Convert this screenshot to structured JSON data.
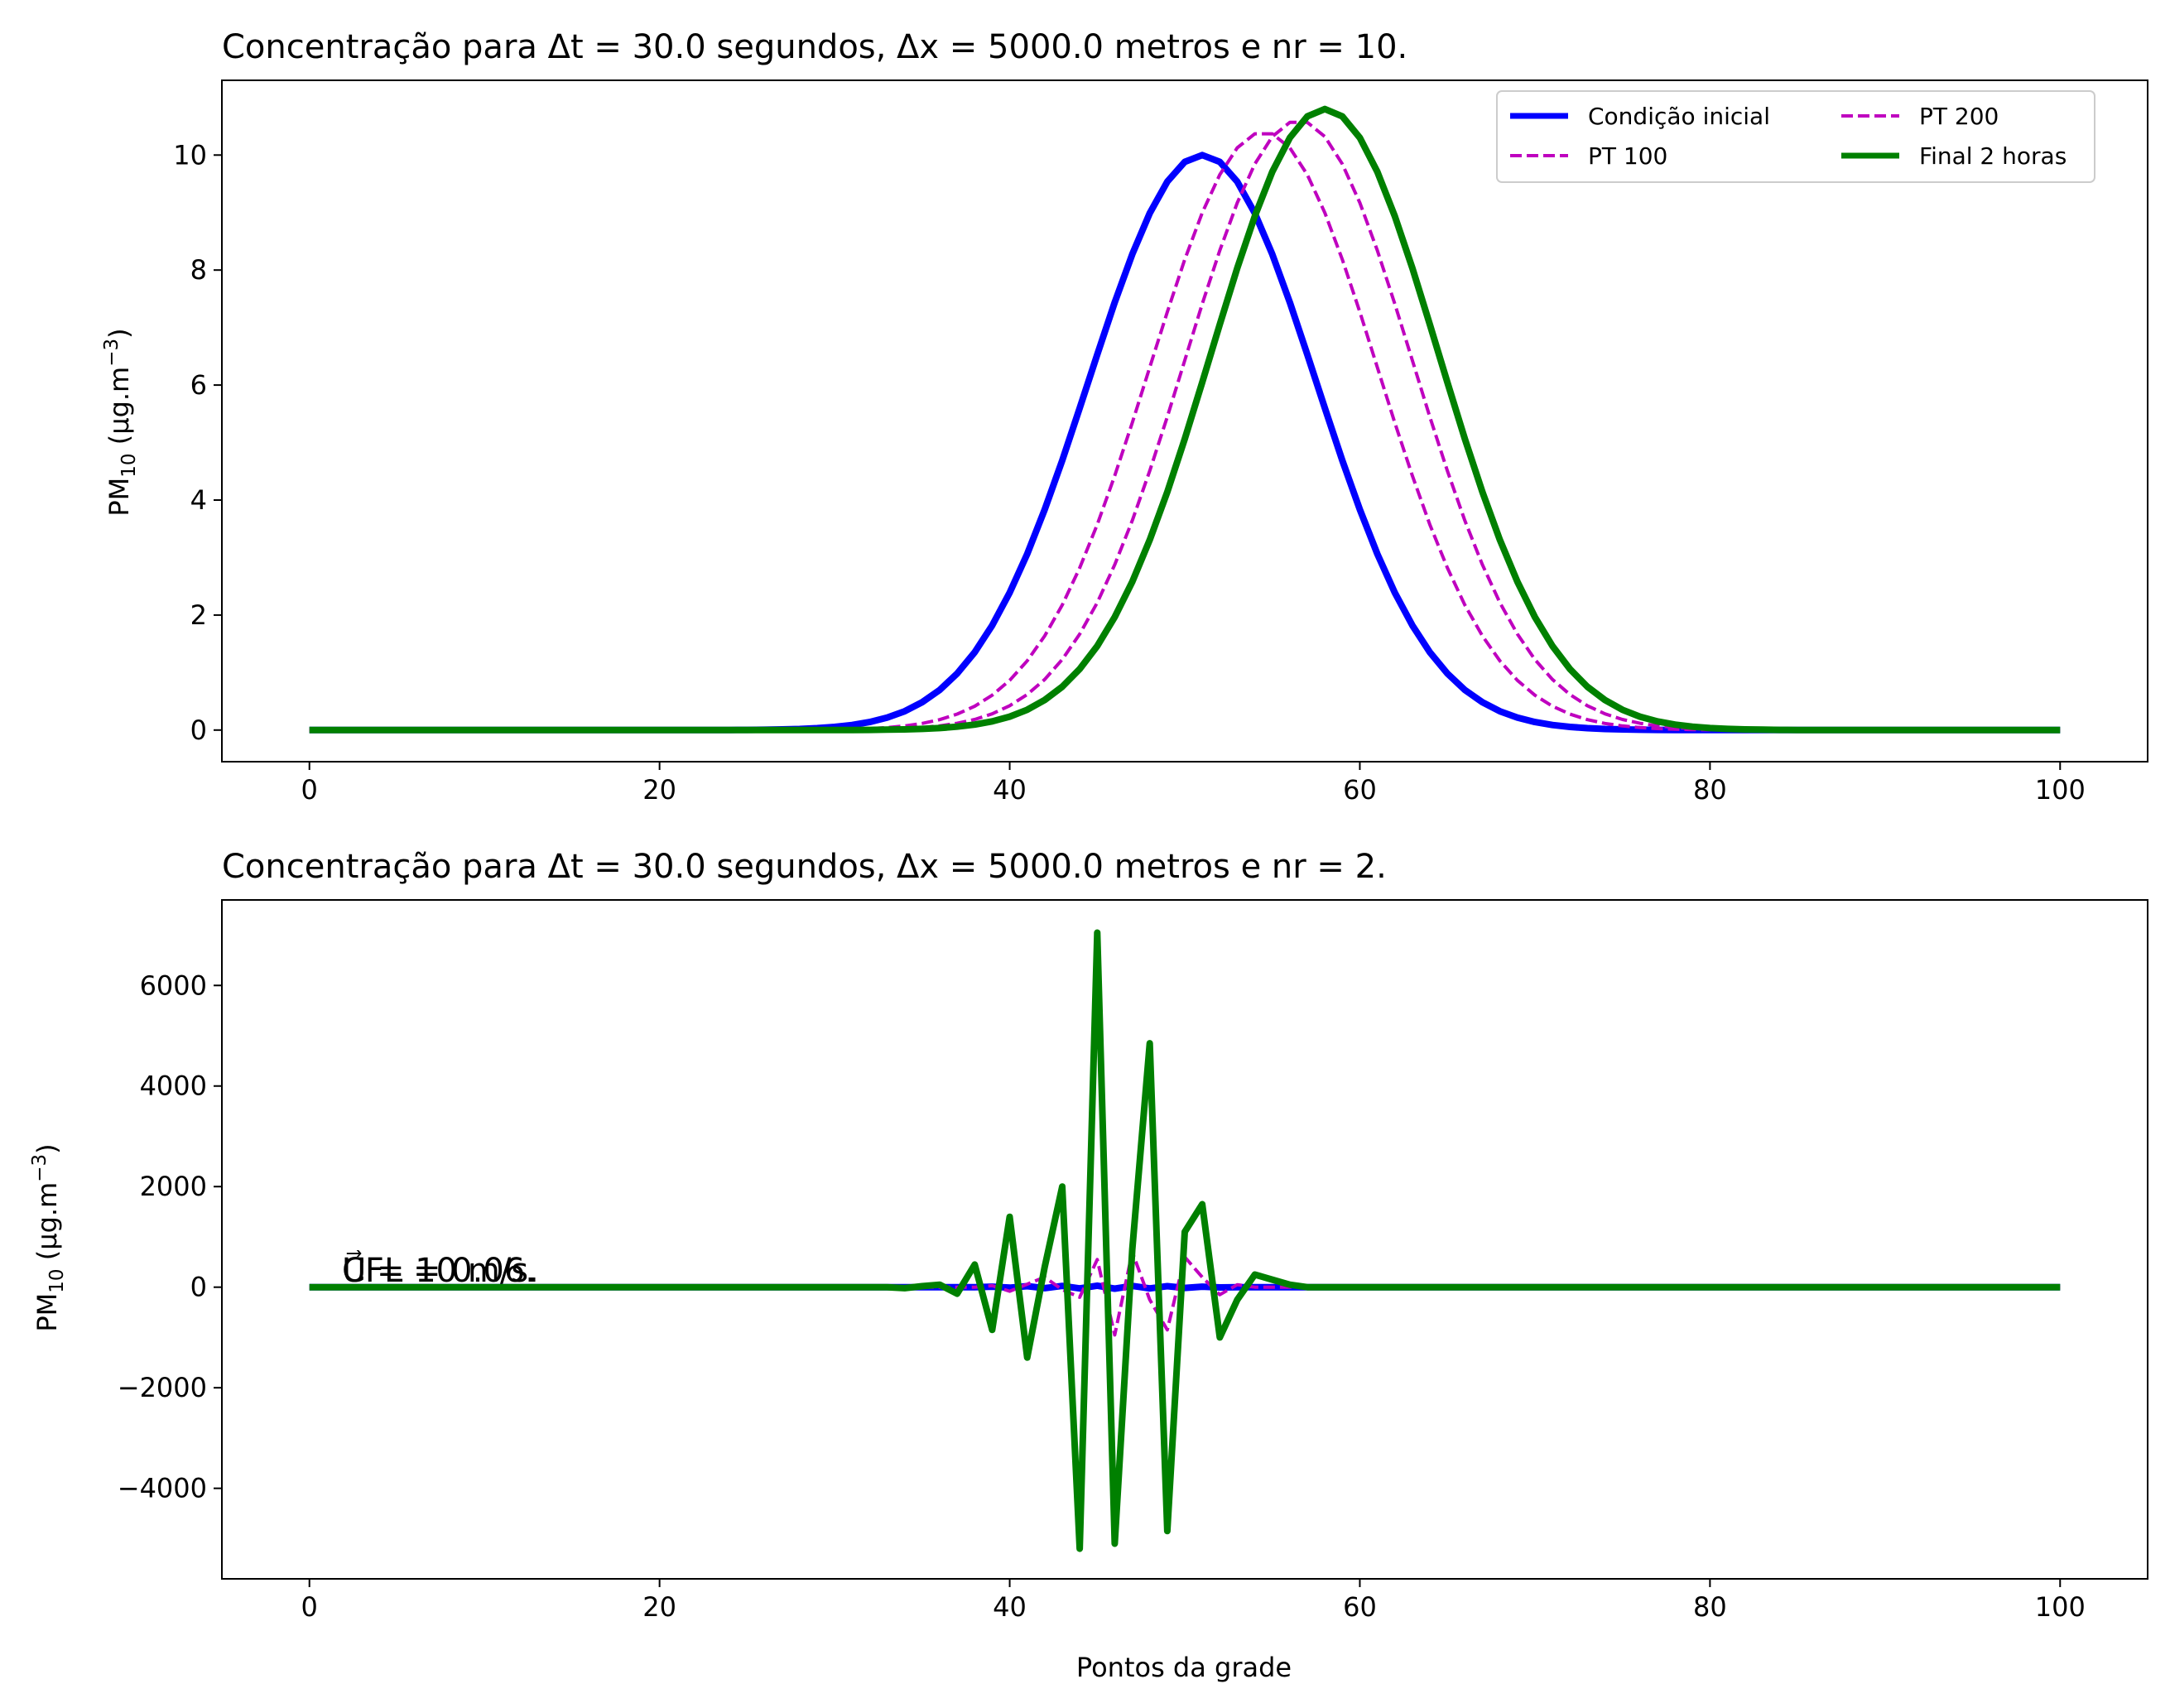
{
  "chart_data": [
    {
      "type": "line",
      "title": "Concentração para Δt = 30.0 segundos, Δx = 5000.0 metros e nr = 10.",
      "xlabel": "",
      "ylabel": "PM",
      "ylabel_sub": "10",
      "ylabel_units": "(μg.m",
      "ylabel_sup": "−3",
      "ylabel_close": ")",
      "xlim": [
        -5,
        105
      ],
      "ylim": [
        -0.55,
        11.3
      ],
      "xticks": [
        0,
        20,
        40,
        60,
        80,
        100
      ],
      "yticks": [
        0,
        2,
        4,
        6,
        8,
        10
      ],
      "grid": false,
      "legend_position": "top-right",
      "legend_columns": 2,
      "series": [
        {
          "name": "Condição inicial",
          "style": "solid",
          "color": "#0000ff",
          "gaussian": {
            "amplitude": 10.0,
            "center": 51,
            "sigma": 6.5
          }
        },
        {
          "name": "PT 100",
          "style": "dashed",
          "color": "#bf00bf",
          "gaussian": {
            "amplitude": 10.4,
            "center": 54.5,
            "sigma": 6.5
          }
        },
        {
          "name": "PT 200",
          "style": "dashed",
          "color": "#bf00bf",
          "gaussian": {
            "amplitude": 10.6,
            "center": 56.5,
            "sigma": 6.5
          }
        },
        {
          "name": "Final 2 horas",
          "style": "solid",
          "color": "#008000",
          "gaussian": {
            "amplitude": 10.8,
            "center": 58,
            "sigma": 6.5
          }
        }
      ]
    },
    {
      "type": "line",
      "title": "Concentração para Δt = 30.0 segundos, Δx = 5000.0 metros e nr = 2.",
      "xlabel": "Pontos da grade",
      "ylabel": "PM",
      "ylabel_sub": "10",
      "ylabel_units": "(μg.m",
      "ylabel_sup": "−3",
      "ylabel_close": ")",
      "xlim": [
        -5,
        105
      ],
      "ylim": [
        -5800,
        7700
      ],
      "xticks": [
        0,
        20,
        40,
        60,
        80,
        100
      ],
      "yticks": [
        -4000,
        -2000,
        0,
        2000,
        4000,
        6000
      ],
      "grid": false,
      "annotations": [
        "U⃗ = 10 m/s.",
        "CFL = 0.06."
      ],
      "series": [
        {
          "name": "",
          "style": "solid",
          "color": "#0000ff",
          "x": [
            0,
            38,
            39,
            40,
            41,
            42,
            43,
            44,
            45,
            46,
            47,
            48,
            49,
            50,
            51,
            52,
            53,
            100
          ],
          "y": [
            0,
            0,
            10,
            -10,
            20,
            -20,
            25,
            -25,
            30,
            -30,
            25,
            -25,
            20,
            -15,
            10,
            -5,
            0,
            0
          ]
        },
        {
          "name": "",
          "style": "dashed",
          "color": "#bf00bf",
          "x": [
            0,
            38,
            39,
            40,
            41,
            42,
            43,
            44,
            45,
            46,
            47,
            48,
            49,
            50,
            51,
            52,
            53,
            54,
            100
          ],
          "y": [
            0,
            0,
            30,
            -80,
            60,
            200,
            -50,
            -200,
            550,
            -950,
            700,
            -250,
            -850,
            600,
            200,
            -150,
            50,
            0,
            0
          ]
        },
        {
          "name": "",
          "style": "solid",
          "color": "#008000",
          "x": [
            0,
            33,
            34,
            35,
            36,
            37,
            38,
            39,
            40,
            41,
            42,
            43,
            44,
            45,
            46,
            47,
            48,
            49,
            50,
            51,
            52,
            53,
            54,
            55,
            56,
            57,
            100
          ],
          "y": [
            0,
            0,
            -20,
            20,
            50,
            -130,
            450,
            -850,
            1400,
            -1400,
            400,
            2000,
            -5200,
            7050,
            -5100,
            750,
            4850,
            -4850,
            1100,
            1650,
            -1000,
            -250,
            250,
            150,
            50,
            0,
            0
          ]
        }
      ]
    }
  ]
}
